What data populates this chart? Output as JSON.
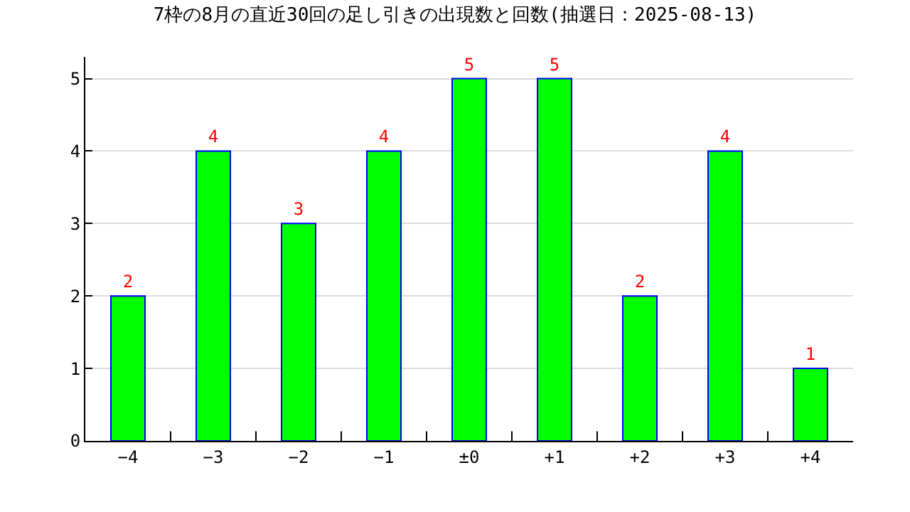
{
  "chart_data": {
    "type": "bar",
    "title": "7枠の8月の直近30回の足し引きの出現数と回数(抽選日：2025-08-13)",
    "categories": [
      "−4",
      "−3",
      "−2",
      "−1",
      "±0",
      "+1",
      "+2",
      "+3",
      "+4"
    ],
    "values": [
      2,
      4,
      3,
      4,
      5,
      5,
      2,
      4,
      1
    ],
    "color": "#00ff00",
    "ylim": [
      0,
      5.3
    ],
    "yticks": [
      0,
      1,
      2,
      3,
      4,
      5
    ],
    "grid": "y",
    "data_labels": true
  }
}
